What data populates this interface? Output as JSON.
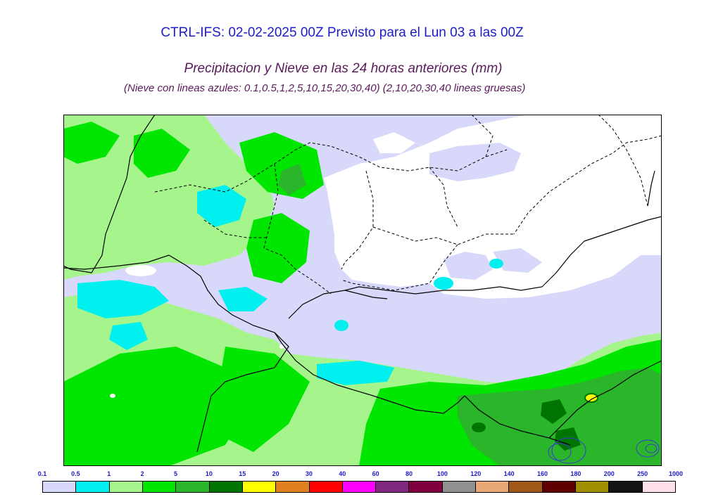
{
  "header": {
    "title": "CTRL-IFS: 02-02-2025 00Z Previsto para el Lun 03 a las 00Z",
    "subtitle": "Precipitacion y Nieve en las 24 horas anteriores (mm)",
    "note": "(Nieve con lineas azules: 0.1,0.5,1,2,5,10,15,20,30,40)  (2,10,20,30,40 lineas gruesas)"
  },
  "colors": {
    "title": "#1c1cc8",
    "subtitle": "#5a1a5a",
    "background": "#ffffff",
    "border_lines": "#000000"
  },
  "legend": {
    "labels": [
      "0.1",
      "0.5",
      "1",
      "2",
      "5",
      "10",
      "15",
      "20",
      "30",
      "40",
      "60",
      "80",
      "100",
      "120",
      "140",
      "160",
      "180",
      "200",
      "250",
      "1000"
    ],
    "colors": [
      "#d8d8fa",
      "#00f0f0",
      "#a6f58c",
      "#00e600",
      "#2bb52b",
      "#007400",
      "#ffff00",
      "#e08020",
      "#ff0000",
      "#ff00ff",
      "#802880",
      "#800040",
      "#909090",
      "#e8a878",
      "#a05818",
      "#600000",
      "#a09000",
      "#141414",
      "#ffe0e8"
    ]
  },
  "map": {
    "fields": {
      "none": "#ffffff",
      "light": "#d8d8fa",
      "cyan": "#00f0f0",
      "pale_green": "#a6f58c",
      "green": "#00e600",
      "mid_green": "#2bb52b",
      "dark_green": "#007400",
      "yellow": "#ffff00"
    }
  }
}
